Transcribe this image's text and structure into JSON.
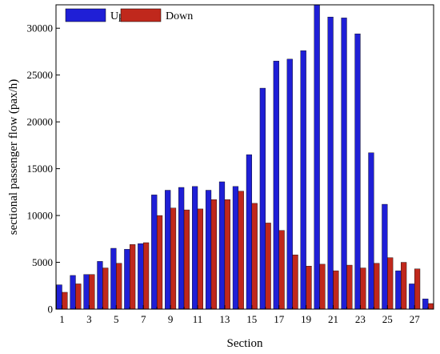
{
  "chart_data": {
    "type": "bar",
    "xlabel": "Section",
    "ylabel": "sectional passenger  flow (pax/h)",
    "ylim": [
      0,
      32500
    ],
    "yticks": [
      0,
      5000,
      10000,
      15000,
      20000,
      25000,
      30000
    ],
    "xtick_labels": [
      "1",
      "3",
      "5",
      "7",
      "9",
      "11",
      "13",
      "15",
      "17",
      "19",
      "21",
      "23",
      "25",
      "27"
    ],
    "legend_position": "top-left",
    "grid": false,
    "categories": [
      "1",
      "2",
      "3",
      "4",
      "5",
      "6",
      "7",
      "8",
      "9",
      "10",
      "11",
      "12",
      "13",
      "14",
      "15",
      "16",
      "17",
      "18",
      "19",
      "20",
      "21",
      "22",
      "23",
      "24",
      "25",
      "26",
      "27",
      "28"
    ],
    "series": [
      {
        "name": "Up",
        "color": "#1f1fd6",
        "values": [
          2600,
          3600,
          3700,
          5100,
          6500,
          6400,
          7000,
          12200,
          12700,
          13000,
          13100,
          12700,
          13600,
          13100,
          16500,
          23600,
          26500,
          26700,
          27600,
          32500,
          31200,
          31100,
          29400,
          16700,
          11200,
          4100,
          2700,
          1100
        ]
      },
      {
        "name": "Down",
        "color": "#c0281c",
        "values": [
          1800,
          2700,
          3700,
          4400,
          4900,
          6900,
          7100,
          10000,
          10800,
          10600,
          10700,
          11700,
          11700,
          12600,
          11300,
          9200,
          8400,
          5800,
          4600,
          4800,
          4100,
          4700,
          4400,
          4900,
          5500,
          5000,
          4300,
          600
        ]
      }
    ]
  }
}
